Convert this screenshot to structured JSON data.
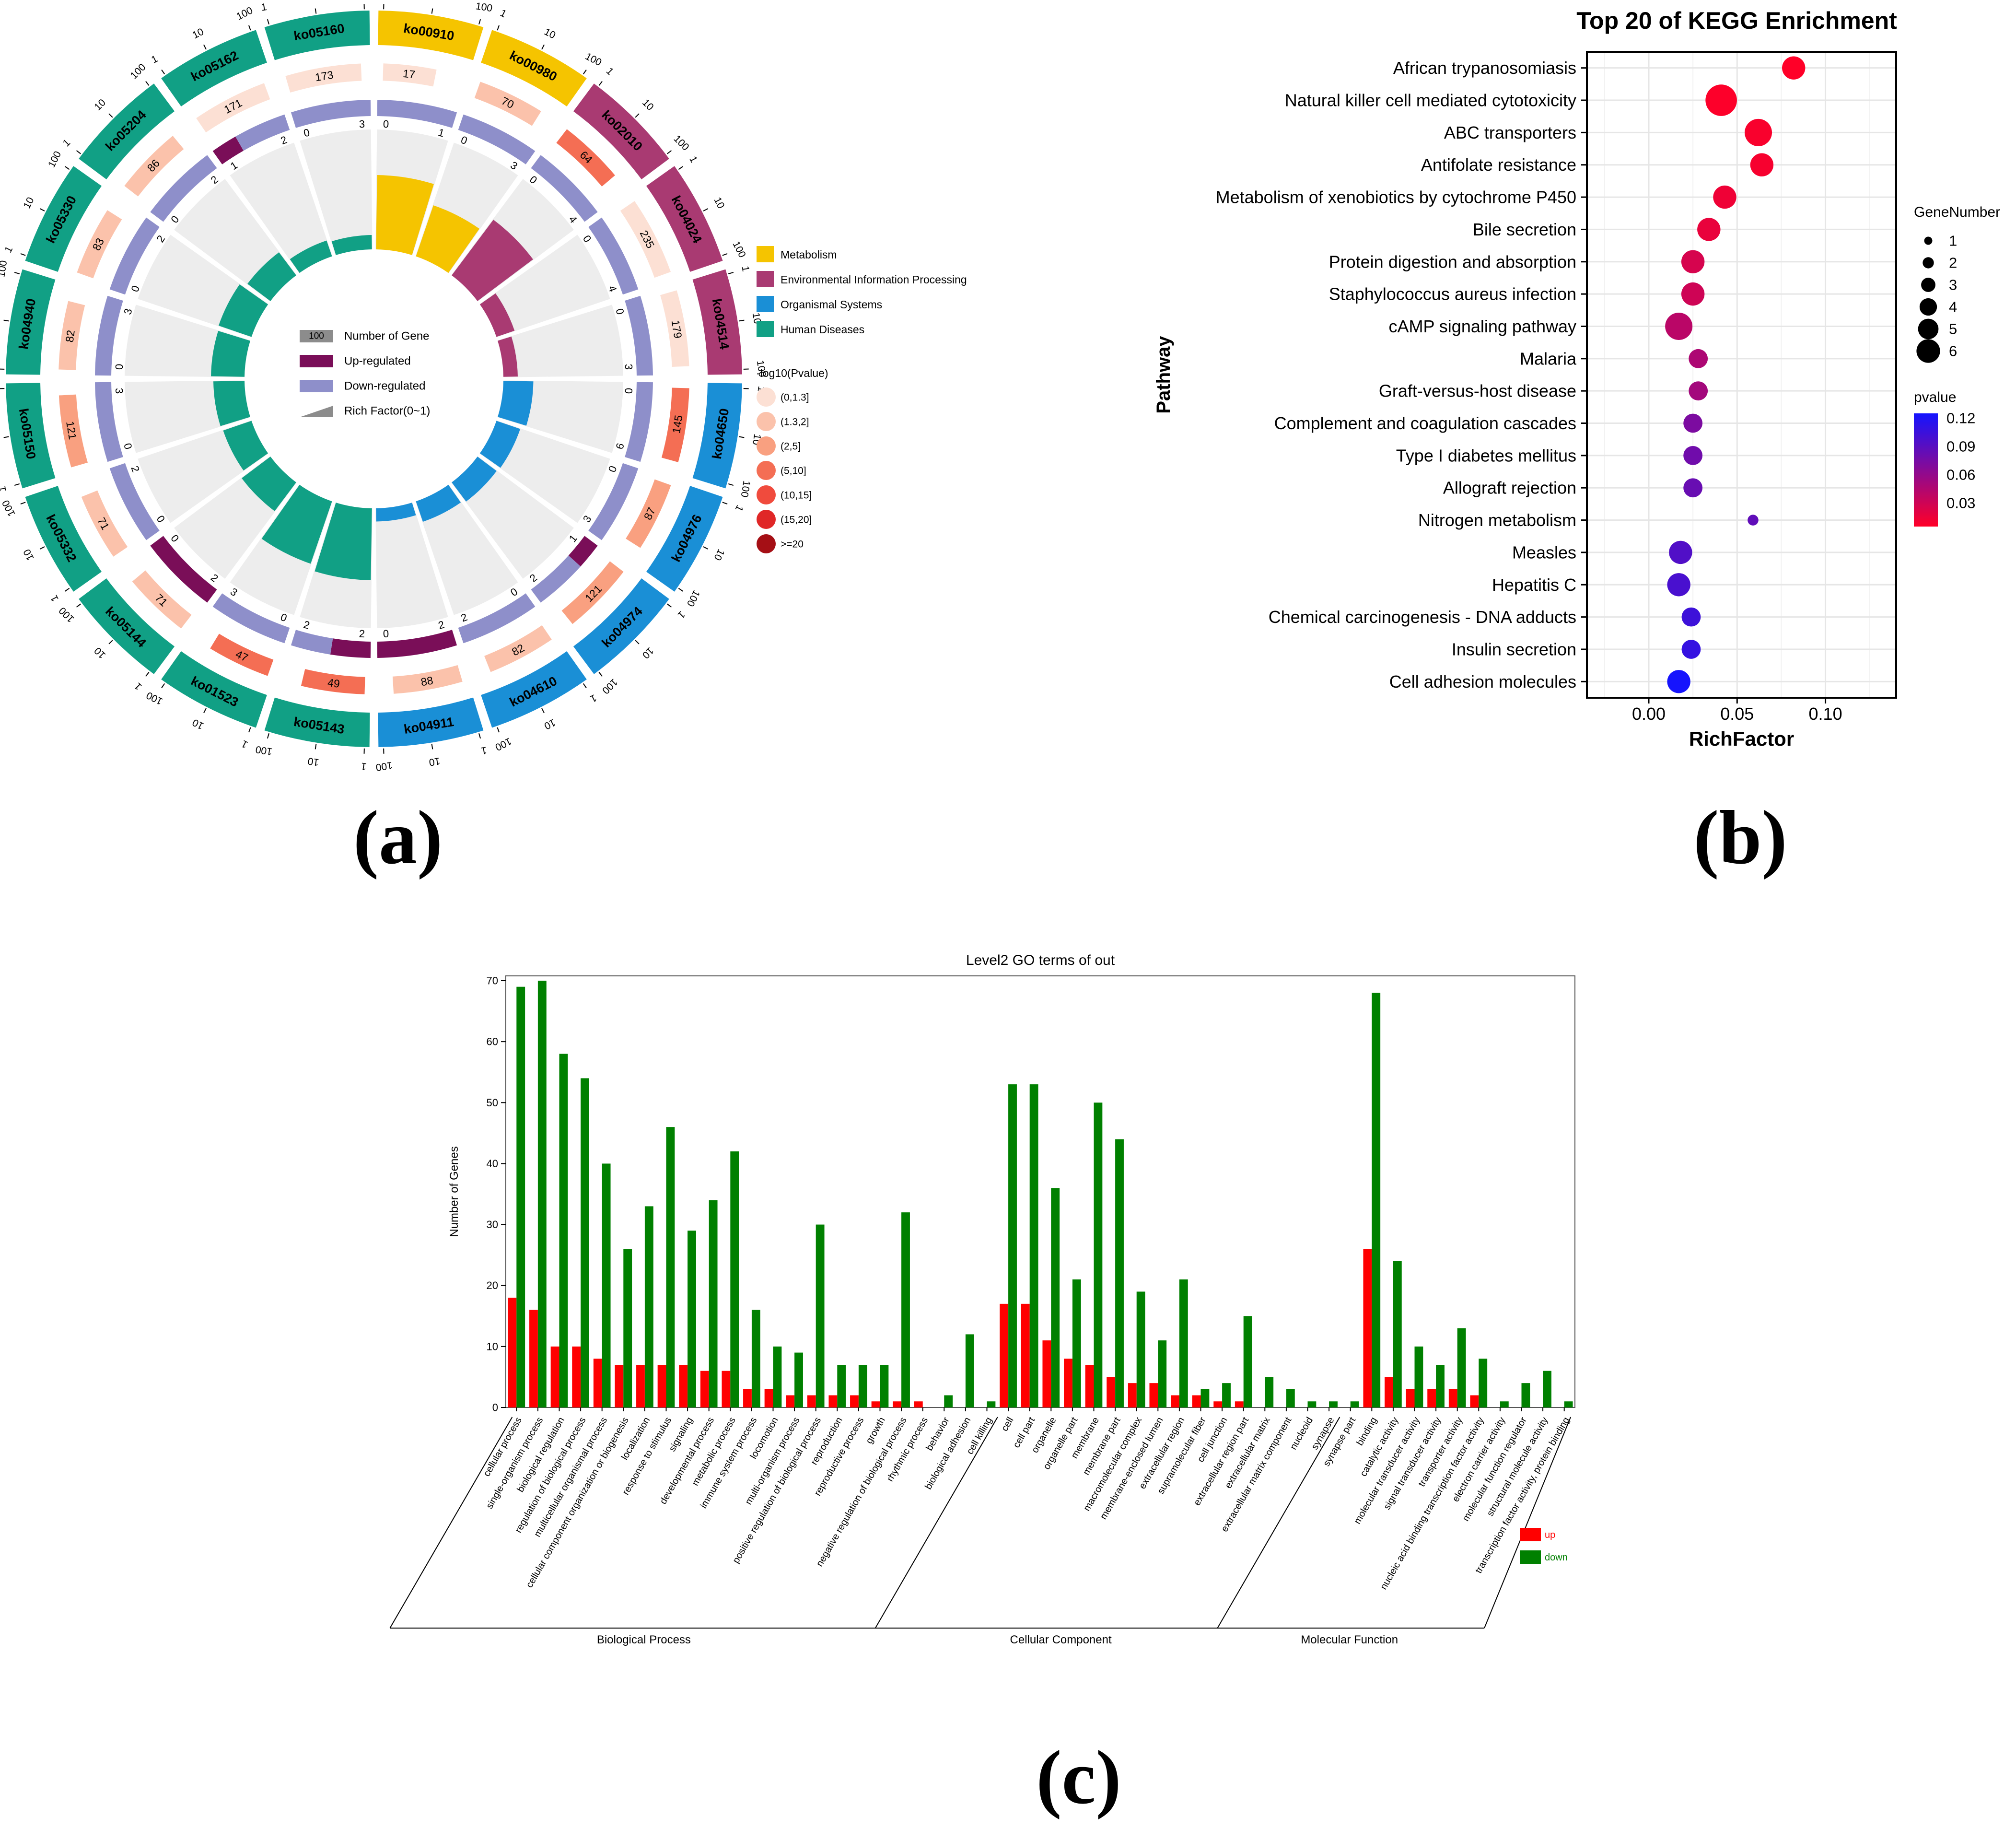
{
  "panel_labels": {
    "a": "(a)",
    "b": "(b)",
    "c": "(c)"
  },
  "colors": {
    "metabolism": "#F5C400",
    "env_info": "#A93A72",
    "organismal": "#1A8FD6",
    "human_disease": "#11A085",
    "upregulated": "#7A0E58",
    "downregulated": "#8E8FCA",
    "rich_bg": "#EDEDED",
    "up_bar": "#FF0000",
    "down_bar": "#008000"
  },
  "chart_data": [
    {
      "id": "circos",
      "type": "circos",
      "axis_ticks": [
        "1",
        "10",
        "100"
      ],
      "pathways": [
        {
          "id": "ko00910",
          "category": "Metabolism",
          "genes": 17,
          "pval_bin": 0,
          "up": 0,
          "down": 1,
          "rich": 0.62
        },
        {
          "id": "ko00980",
          "category": "Metabolism",
          "genes": 70,
          "pval_bin": 1,
          "up": 0,
          "down": 3,
          "rich": 0.45
        },
        {
          "id": "ko02010",
          "category": "Environmental Information Processing",
          "genes": 64,
          "pval_bin": 3,
          "up": 0,
          "down": 4,
          "rich": 0.58
        },
        {
          "id": "ko04024",
          "category": "Environmental Information Processing",
          "genes": 235,
          "pval_bin": 0,
          "up": 0,
          "down": 4,
          "rich": 0.16
        },
        {
          "id": "ko04514",
          "category": "Environmental Information Processing",
          "genes": 179,
          "pval_bin": 0,
          "up": 0,
          "down": 3,
          "rich": 0.12
        },
        {
          "id": "ko04650",
          "category": "Organismal Systems",
          "genes": 145,
          "pval_bin": 3,
          "up": 0,
          "down": 6,
          "rich": 0.25
        },
        {
          "id": "ko04976",
          "category": "Organismal Systems",
          "genes": 87,
          "pval_bin": 2,
          "up": 0,
          "down": 3,
          "rich": 0.21
        },
        {
          "id": "ko04974",
          "category": "Organismal Systems",
          "genes": 121,
          "pval_bin": 2,
          "up": 1,
          "down": 2,
          "rich": 0.2
        },
        {
          "id": "ko04610",
          "category": "Organismal Systems",
          "genes": 82,
          "pval_bin": 1,
          "up": 0,
          "down": 2,
          "rich": 0.18
        },
        {
          "id": "ko04911",
          "category": "Organismal Systems",
          "genes": 88,
          "pval_bin": 1,
          "up": 2,
          "down": 0,
          "rich": 0.11
        },
        {
          "id": "ko05143",
          "category": "Human Diseases",
          "genes": 49,
          "pval_bin": 3,
          "up": 2,
          "down": 2,
          "rich": 0.6
        },
        {
          "id": "ko01523",
          "category": "Human Diseases",
          "genes": 47,
          "pval_bin": 3,
          "up": 0,
          "down": 3,
          "rich": 0.55
        },
        {
          "id": "ko05144",
          "category": "Human Diseases",
          "genes": 71,
          "pval_bin": 1,
          "up": 2,
          "down": 0,
          "rich": 0.3
        },
        {
          "id": "ko05332",
          "category": "Human Diseases",
          "genes": 71,
          "pval_bin": 1,
          "up": 0,
          "down": 2,
          "rich": 0.25
        },
        {
          "id": "ko05150",
          "category": "Human Diseases",
          "genes": 121,
          "pval_bin": 2,
          "up": 0,
          "down": 3,
          "rich": 0.26
        },
        {
          "id": "ko04940",
          "category": "Human Diseases",
          "genes": 82,
          "pval_bin": 1,
          "up": 0,
          "down": 3,
          "rich": 0.28
        },
        {
          "id": "ko05330",
          "category": "Human Diseases",
          "genes": 83,
          "pval_bin": 1,
          "up": 0,
          "down": 2,
          "rich": 0.29
        },
        {
          "id": "ko05204",
          "category": "Human Diseases",
          "genes": 86,
          "pval_bin": 1,
          "up": 0,
          "down": 2,
          "rich": 0.24
        },
        {
          "id": "ko05162",
          "category": "Human Diseases",
          "genes": 171,
          "pval_bin": 0,
          "up": 1,
          "down": 2,
          "rich": 0.14
        },
        {
          "id": "ko05160",
          "category": "Human Diseases",
          "genes": 173,
          "pval_bin": 0,
          "up": 0,
          "down": 3,
          "rich": 0.12
        }
      ],
      "legend_categories": [
        {
          "label": "Metabolism",
          "color": "#F5C400"
        },
        {
          "label": "Environmental Information Processing",
          "color": "#A93A72"
        },
        {
          "label": "Organismal Systems",
          "color": "#1A8FD6"
        },
        {
          "label": "Human Diseases",
          "color": "#11A085"
        }
      ],
      "pvalue_legend": {
        "title": "-log10(Pvalue)",
        "bins": [
          {
            "label": "(0,1.3]",
            "color": "#FCE0D4"
          },
          {
            "label": "(1.3,2]",
            "color": "#FBC2AB"
          },
          {
            "label": "(2,5]",
            "color": "#F9A080"
          },
          {
            "label": "(5,10]",
            "color": "#F46E54"
          },
          {
            "label": "(10,15]",
            "color": "#F04B3D"
          },
          {
            "label": "(15,20]",
            "color": "#E02727"
          },
          {
            "label": ">=20",
            "color": "#A50F15"
          }
        ]
      },
      "inner_legend": [
        {
          "label": "Number of Gene",
          "swatch": "100"
        },
        {
          "label": "Up-regulated",
          "swatch": ""
        },
        {
          "label": "Down-regulated",
          "swatch": ""
        },
        {
          "label": "Rich Factor(0~1)",
          "swatch": ""
        }
      ]
    },
    {
      "id": "kegg",
      "type": "scatter",
      "title": "Top 20 of KEGG Enrichment",
      "xlabel": "RichFactor",
      "ylabel": "Pathway",
      "xlim": [
        -0.035,
        0.14
      ],
      "xticks": [
        0.0,
        0.05,
        0.1
      ],
      "xtick_labels": [
        "0.00",
        "0.05",
        "0.10"
      ],
      "size_legend_title": "GeneNumber",
      "size_legend_values": [
        1,
        2,
        3,
        4,
        5,
        6
      ],
      "color_legend_title": "pvalue",
      "color_legend_range": [
        0.005,
        0.125
      ],
      "color_legend_ticks": [
        0.12,
        0.09,
        0.06,
        0.03
      ],
      "color_legend_labels": [
        "0.12",
        "0.09",
        "0.06",
        "0.03"
      ],
      "points": [
        {
          "pathway": "African trypanosomiasis",
          "x": 0.082,
          "genes": 4,
          "pvalue": 0.005
        },
        {
          "pathway": "Natural killer cell mediated cytotoxicity",
          "x": 0.041,
          "genes": 6,
          "pvalue": 0.006
        },
        {
          "pathway": "ABC transporters",
          "x": 0.062,
          "genes": 5,
          "pvalue": 0.008
        },
        {
          "pathway": "Antifolate resistance",
          "x": 0.064,
          "genes": 4,
          "pvalue": 0.009
        },
        {
          "pathway": "Metabolism of xenobiotics by cytochrome P450",
          "x": 0.043,
          "genes": 4,
          "pvalue": 0.013
        },
        {
          "pathway": "Bile secretion",
          "x": 0.034,
          "genes": 4,
          "pvalue": 0.016
        },
        {
          "pathway": "Protein digestion and absorption",
          "x": 0.025,
          "genes": 4,
          "pvalue": 0.026
        },
        {
          "pathway": "Staphylococcus aureus infection",
          "x": 0.025,
          "genes": 4,
          "pvalue": 0.03
        },
        {
          "pathway": "cAMP signaling pathway",
          "x": 0.017,
          "genes": 5,
          "pvalue": 0.04
        },
        {
          "pathway": "Malaria",
          "x": 0.028,
          "genes": 3,
          "pvalue": 0.047
        },
        {
          "pathway": "Graft-versus-host disease",
          "x": 0.028,
          "genes": 3,
          "pvalue": 0.052
        },
        {
          "pathway": "Complement and coagulation cascades",
          "x": 0.025,
          "genes": 3,
          "pvalue": 0.072
        },
        {
          "pathway": "Type I diabetes mellitus",
          "x": 0.025,
          "genes": 3,
          "pvalue": 0.078
        },
        {
          "pathway": "Allograft rejection",
          "x": 0.025,
          "genes": 3,
          "pvalue": 0.082
        },
        {
          "pathway": "Nitrogen metabolism",
          "x": 0.059,
          "genes": 1,
          "pvalue": 0.086
        },
        {
          "pathway": "Measles",
          "x": 0.018,
          "genes": 4,
          "pvalue": 0.094
        },
        {
          "pathway": "Hepatitis C",
          "x": 0.017,
          "genes": 4,
          "pvalue": 0.098
        },
        {
          "pathway": "Chemical carcinogenesis - DNA adducts",
          "x": 0.024,
          "genes": 3,
          "pvalue": 0.104
        },
        {
          "pathway": "Insulin secretion",
          "x": 0.024,
          "genes": 3,
          "pvalue": 0.108
        },
        {
          "pathway": "Cell adhesion molecules",
          "x": 0.017,
          "genes": 4,
          "pvalue": 0.124
        }
      ]
    },
    {
      "id": "go",
      "type": "bar",
      "title": "Level2 GO terms of out",
      "ylabel": "Number of Genes",
      "ylim": [
        0,
        70
      ],
      "yticks": [
        0,
        10,
        20,
        30,
        40,
        50,
        60,
        70
      ],
      "ytick_labels": [
        "0",
        "10",
        "20",
        "30",
        "40",
        "50",
        "60",
        "70"
      ],
      "series_names": [
        "up",
        "down"
      ],
      "groups": [
        {
          "name": "Biological Process",
          "start": 0,
          "end": 22
        },
        {
          "name": "Cellular Component",
          "start": 23,
          "end": 38
        },
        {
          "name": "Molecular Function",
          "start": 39,
          "end": 49
        }
      ],
      "categories": [
        "cellular process",
        "single-organism process",
        "biological regulation",
        "regulation of biological process",
        "multicellular organismal process",
        "cellular component organization or biogenesis",
        "localization",
        "response to stimulus",
        "signaling",
        "developmental process",
        "metabolic process",
        "immune system process",
        "locomotion",
        "multi-organism process",
        "positive regulation of biological process",
        "reproduction",
        "reproductive process",
        "growth",
        "negative regulation of biological process",
        "rhythmic process",
        "behavior",
        "biological adhesion",
        "cell killing",
        "cell",
        "cell part",
        "organelle",
        "organelle part",
        "membrane",
        "membrane part",
        "macromolecular complex",
        "membrane-enclosed lumen",
        "extracellular region",
        "supramolecular fiber",
        "cell junction",
        "extracellular region part",
        "extracellular matrix",
        "extracellular matrix component",
        "nucleoid",
        "synapse",
        "synapse part",
        "binding",
        "catalytic activity",
        "molecular transducer activity",
        "signal transducer activity",
        "transporter activity",
        "nucleic acid binding transcription factor activity",
        "electron carrier activity",
        "molecular function regulator",
        "structural molecule activity",
        "transcription factor activity, protein binding"
      ],
      "up": [
        18,
        16,
        10,
        10,
        8,
        7,
        7,
        7,
        7,
        6,
        6,
        3,
        3,
        2,
        2,
        2,
        2,
        1,
        1,
        1,
        0,
        0,
        0,
        17,
        17,
        11,
        8,
        7,
        5,
        4,
        4,
        2,
        2,
        1,
        1,
        0,
        0,
        0,
        0,
        0,
        26,
        5,
        3,
        3,
        3,
        2,
        0,
        0,
        0,
        0
      ],
      "down": [
        69,
        70,
        58,
        54,
        40,
        26,
        33,
        46,
        29,
        34,
        42,
        16,
        10,
        9,
        30,
        7,
        7,
        7,
        32,
        0,
        2,
        12,
        1,
        53,
        53,
        36,
        21,
        50,
        44,
        19,
        11,
        21,
        3,
        4,
        15,
        5,
        3,
        1,
        1,
        1,
        68,
        24,
        10,
        7,
        13,
        8,
        1,
        4,
        6,
        1
      ]
    }
  ]
}
